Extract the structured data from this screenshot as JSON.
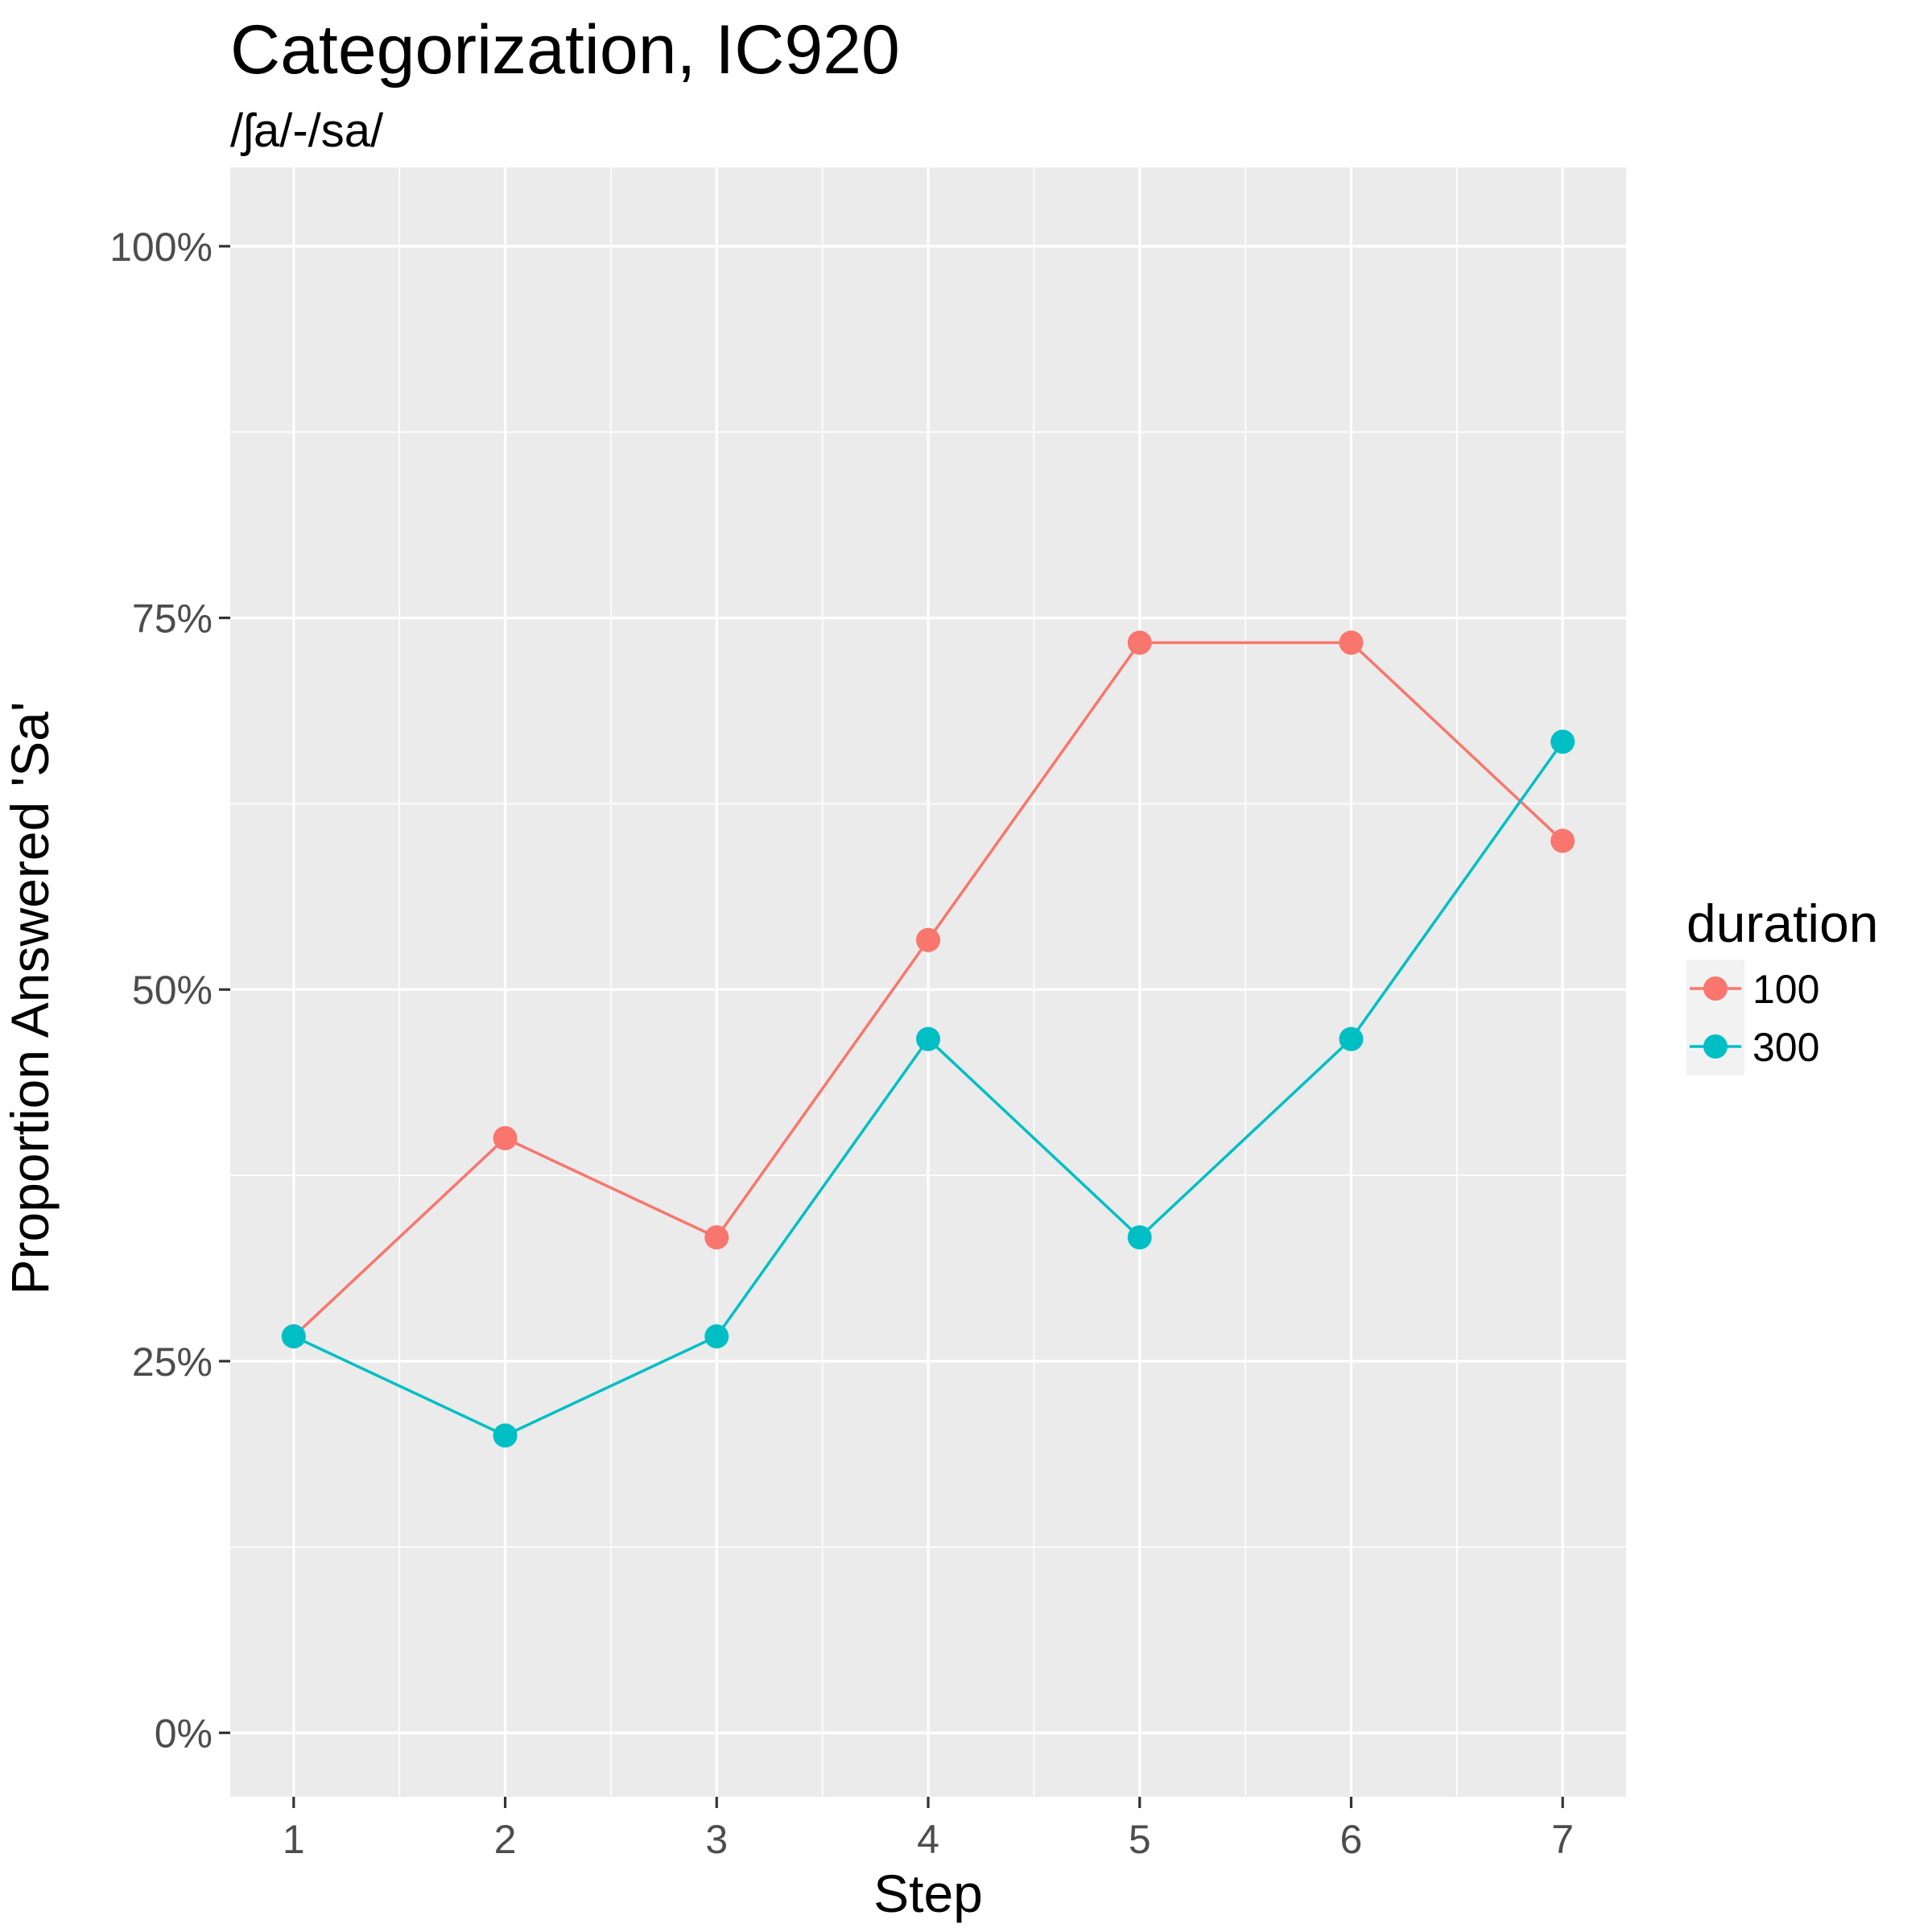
{
  "chart_data": {
    "type": "line",
    "title": "Categorization, IC920",
    "subtitle": "/ʃa/-/sa/",
    "xlabel": "Step",
    "ylabel": "Proportion Answered 'Sa'",
    "x": [
      1,
      2,
      3,
      4,
      5,
      6,
      7
    ],
    "x_ticks": [
      "1",
      "2",
      "3",
      "4",
      "5",
      "6",
      "7"
    ],
    "y_ticks": [
      {
        "value": 0,
        "label": "0%"
      },
      {
        "value": 0.25,
        "label": "25%"
      },
      {
        "value": 0.5,
        "label": "50%"
      },
      {
        "value": 0.75,
        "label": "75%"
      },
      {
        "value": 1.0,
        "label": "100%"
      }
    ],
    "xlim": [
      0.7,
      7.3
    ],
    "ylim": [
      -0.043,
      1.053
    ],
    "grid": true,
    "legend": {
      "title": "duration",
      "position": "right"
    },
    "series": [
      {
        "name": "100",
        "color": "#F8766D",
        "values": [
          0.2667,
          0.4,
          0.3333,
          0.5333,
          0.7333,
          0.7333,
          0.6
        ]
      },
      {
        "name": "300",
        "color": "#00BFC4",
        "values": [
          0.2667,
          0.2,
          0.2667,
          0.4667,
          0.3333,
          0.4667,
          0.6667
        ]
      }
    ]
  }
}
